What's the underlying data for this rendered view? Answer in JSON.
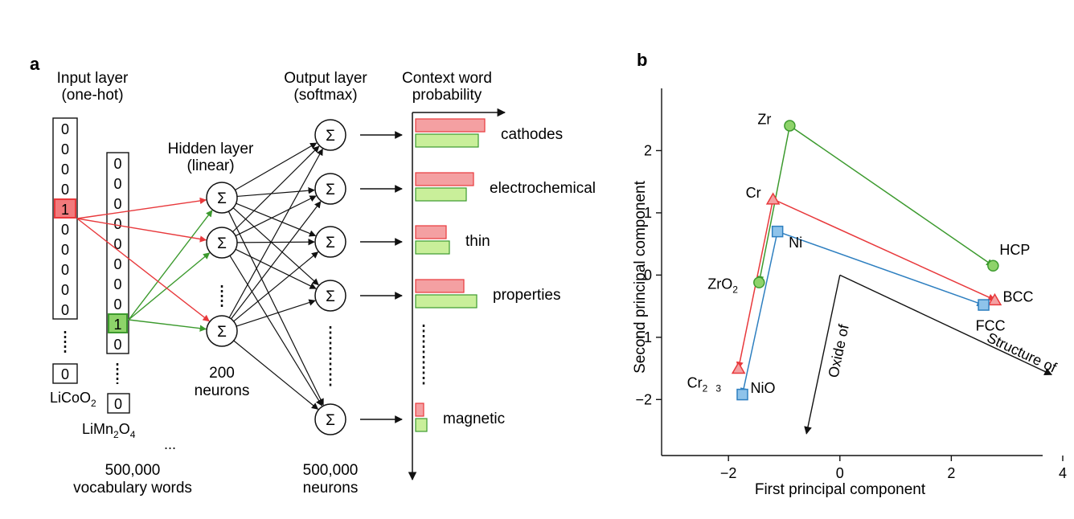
{
  "panel_a": {
    "letter": "a",
    "input_title": [
      "Input layer",
      "(one-hot)"
    ],
    "hidden_title": [
      "Hidden layer",
      "(linear)"
    ],
    "output_title": [
      "Output layer",
      "(softmax)"
    ],
    "context_title": [
      "Context word",
      "probability"
    ],
    "vec1_bits": [
      "0",
      "0",
      "0",
      "0",
      "1",
      "0",
      "0",
      "0",
      "0",
      "0"
    ],
    "vec1_label": "LiCoO",
    "vec1_label_sub": "2",
    "vec1_tail": "0",
    "vec2_bits": [
      "0",
      "0",
      "0",
      "0",
      "0",
      "0",
      "0",
      "0",
      "1",
      "0"
    ],
    "vec2_label": [
      "LiMn",
      "2",
      "O",
      "4"
    ],
    "vec2_tail": "0",
    "vec_more": "...",
    "vocab": [
      "500,000",
      "vocabulary words"
    ],
    "hidden_count": [
      "200",
      "neurons"
    ],
    "output_count": [
      "500,000",
      "neurons"
    ],
    "sigma": "Σ",
    "context_words": [
      "cathodes",
      "electrochemical",
      "thin",
      "properties",
      "magnetic"
    ],
    "context_probs_red": [
      0.86,
      0.72,
      0.38,
      0.6,
      0.1
    ],
    "context_probs_green": [
      0.78,
      0.63,
      0.42,
      0.76,
      0.14
    ],
    "colors": {
      "red": "#e8393c",
      "green": "#3c9a2e",
      "red_fill": "#f4a0a2",
      "green_fill": "#c9ef9a",
      "red_box": "#f27a7c",
      "green_box": "#8ed36a"
    }
  },
  "panel_b": {
    "letter": "b",
    "chart_data": {
      "type": "scatter",
      "xlabel": "First principal component",
      "ylabel": "Second principal component",
      "xlim": [
        -3.2,
        4.0
      ],
      "ylim": [
        -2.9,
        3.0
      ],
      "xticks": [
        -2,
        0,
        2,
        4
      ],
      "xtick_labels": [
        "−2",
        "0",
        "2",
        "4"
      ],
      "yticks": [
        -2,
        -1,
        0,
        1,
        2
      ],
      "ytick_labels": [
        "−2",
        "−1",
        "0",
        "1",
        "2"
      ],
      "points": [
        {
          "label": "Zr",
          "sub": "",
          "x": -0.9,
          "y": 2.4,
          "color": "#3c9a2e",
          "fill": "#8ed36a",
          "marker": "circle"
        },
        {
          "label": "HCP",
          "sub": "",
          "x": 2.75,
          "y": 0.15,
          "color": "#3c9a2e",
          "fill": "#8ed36a",
          "marker": "circle"
        },
        {
          "label": "ZrO",
          "sub": "2",
          "x": -1.45,
          "y": -0.12,
          "color": "#3c9a2e",
          "fill": "#8ed36a",
          "marker": "circle"
        },
        {
          "label": "Cr",
          "sub": "",
          "x": -1.2,
          "y": 1.22,
          "color": "#e8393c",
          "fill": "#f4a0a2",
          "marker": "triangle"
        },
        {
          "label": "BCC",
          "sub": "",
          "x": 2.78,
          "y": -0.4,
          "color": "#e8393c",
          "fill": "#f4a0a2",
          "marker": "triangle"
        },
        {
          "label": "Cr",
          "sub": "2",
          "sub2": "3",
          "x": -1.82,
          "y": -1.5,
          "color": "#e8393c",
          "fill": "#f4a0a2",
          "marker": "triangle"
        },
        {
          "label": "Ni",
          "sub": "",
          "x": -1.12,
          "y": 0.7,
          "color": "#2e7fc0",
          "fill": "#8ec3ea",
          "marker": "square"
        },
        {
          "label": "FCC",
          "sub": "",
          "x": 2.58,
          "y": -0.48,
          "color": "#2e7fc0",
          "fill": "#8ec3ea",
          "marker": "square"
        },
        {
          "label": "NiO",
          "sub": "",
          "x": -1.75,
          "y": -1.92,
          "color": "#2e7fc0",
          "fill": "#8ec3ea",
          "marker": "square"
        }
      ],
      "arrows": [
        {
          "from": [
            -0.9,
            2.4
          ],
          "to": [
            2.75,
            0.15
          ],
          "color": "#3c9a2e"
        },
        {
          "from": [
            -0.9,
            2.4
          ],
          "to": [
            -1.45,
            -0.12
          ],
          "color": "#3c9a2e"
        },
        {
          "from": [
            -1.2,
            1.22
          ],
          "to": [
            2.78,
            -0.4
          ],
          "color": "#e8393c"
        },
        {
          "from": [
            -1.2,
            1.22
          ],
          "to": [
            -1.82,
            -1.5
          ],
          "color": "#e8393c"
        },
        {
          "from": [
            -1.12,
            0.7
          ],
          "to": [
            2.58,
            -0.48
          ],
          "color": "#2e7fc0"
        },
        {
          "from": [
            -1.12,
            0.7
          ],
          "to": [
            -1.75,
            -1.92
          ],
          "color": "#2e7fc0"
        }
      ],
      "vectors": [
        {
          "label": "Structure of",
          "from": [
            0,
            0
          ],
          "to": [
            3.8,
            -1.6
          ]
        },
        {
          "label": "Oxide of",
          "from": [
            0,
            0
          ],
          "to": [
            -0.6,
            -2.55
          ]
        }
      ]
    }
  }
}
